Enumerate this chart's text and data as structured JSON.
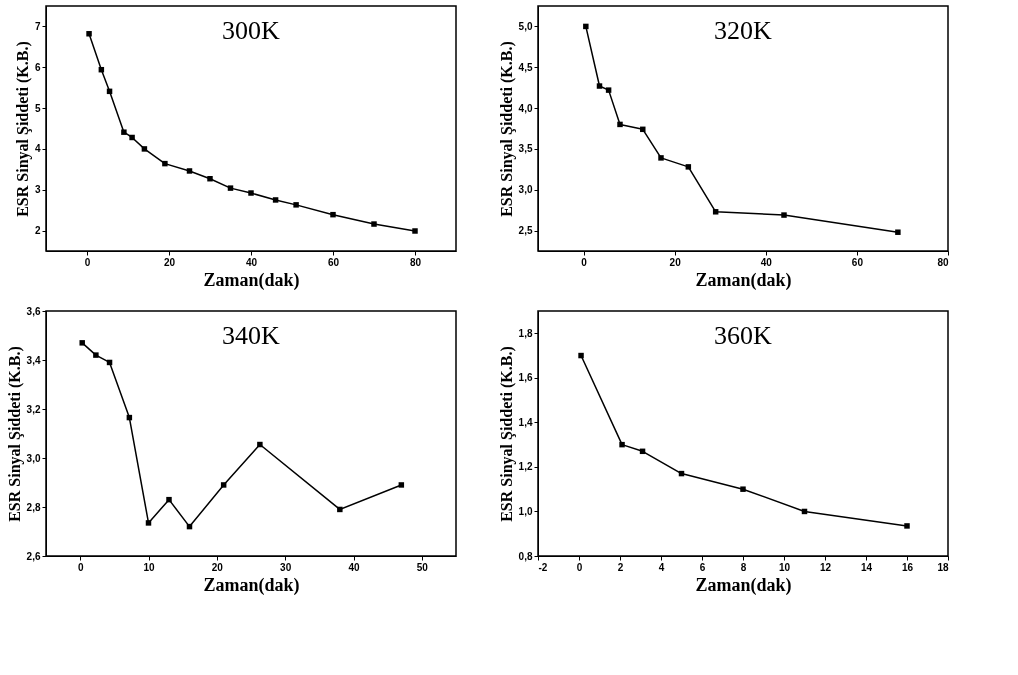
{
  "chart_data": [
    {
      "type": "line",
      "title": "300K",
      "xlabel": "Zaman(dak)",
      "ylabel": "ESR Sinyal Şiddeti (K.B.)",
      "marker": "square",
      "xlim": [
        -10,
        90
      ],
      "xticks": [
        0,
        20,
        40,
        60,
        80
      ],
      "ylim": [
        1.5,
        7.5
      ],
      "yticks": [
        2,
        3,
        4,
        5,
        6,
        7
      ],
      "x": [
        0.5,
        3.5,
        5.5,
        9,
        11,
        14,
        19,
        25,
        30,
        35,
        40,
        46,
        51,
        60,
        70,
        80
      ],
      "series": [
        {
          "color": "#000000",
          "values": [
            6.82,
            5.94,
            5.41,
            4.41,
            4.28,
            4.0,
            3.64,
            3.46,
            3.27,
            3.04,
            2.92,
            2.75,
            2.63,
            2.39,
            2.16,
            1.99
          ]
        }
      ]
    },
    {
      "type": "line",
      "title": "320K",
      "xlabel": "Zaman(dak)",
      "ylabel": "ESR Sinyal Şiddeti (K.B.)",
      "marker": "square",
      "xlim": [
        -10,
        80
      ],
      "xticks": [
        0,
        20,
        40,
        60,
        80
      ],
      "ylim": [
        2.25,
        5.25
      ],
      "yticks": [
        {
          "value": 2.5,
          "label": "2,5"
        },
        {
          "value": 3.0,
          "label": "3,0"
        },
        {
          "value": 3.5,
          "label": "3,5"
        },
        {
          "value": 4.0,
          "label": "4,0"
        },
        {
          "value": 4.5,
          "label": "4,5"
        },
        {
          "value": 5.0,
          "label": "5,0"
        }
      ],
      "x": [
        0.5,
        3.5,
        5.5,
        8,
        13,
        17,
        23,
        29,
        44,
        69
      ],
      "series": [
        {
          "color": "#000000",
          "values": [
            5.0,
            4.27,
            4.22,
            3.8,
            3.74,
            3.39,
            3.28,
            2.73,
            2.69,
            2.48
          ]
        }
      ]
    },
    {
      "type": "line",
      "title": "340K",
      "xlabel": "Zaman(dak)",
      "ylabel": "ESR Sinyal Şiddeti (K.B.)",
      "marker": "square",
      "xlim": [
        -5,
        55
      ],
      "xticks": [
        0,
        10,
        20,
        30,
        40,
        50
      ],
      "ylim": [
        2.6,
        3.6
      ],
      "yticks": [
        {
          "value": 2.6,
          "label": "2,6"
        },
        {
          "value": 2.8,
          "label": "2,8"
        },
        {
          "value": 3.0,
          "label": "3,0"
        },
        {
          "value": 3.2,
          "label": "3,2"
        },
        {
          "value": 3.4,
          "label": "3,4"
        },
        {
          "value": 3.6,
          "label": "3,6"
        }
      ],
      "x": [
        0.3,
        2.3,
        4.3,
        7.2,
        10,
        13,
        16,
        21,
        26.3,
        38,
        47
      ],
      "series": [
        {
          "color": "#000000",
          "values": [
            3.47,
            3.42,
            3.39,
            3.165,
            2.735,
            2.83,
            2.72,
            2.89,
            3.055,
            2.79,
            2.89
          ]
        }
      ]
    },
    {
      "type": "line",
      "title": "360K",
      "xlabel": "Zaman(dak)",
      "ylabel": "ESR Sinyal Şiddeti (K.B.)",
      "marker": "square",
      "xlim": [
        -2,
        18
      ],
      "xticks": [
        -2,
        0,
        2,
        4,
        6,
        8,
        10,
        12,
        14,
        16,
        18
      ],
      "ylim": [
        0.8,
        1.9
      ],
      "yticks": [
        {
          "value": 0.8,
          "label": "0,8"
        },
        {
          "value": 1.0,
          "label": "1,0"
        },
        {
          "value": 1.2,
          "label": "1,2"
        },
        {
          "value": 1.4,
          "label": "1,4"
        },
        {
          "value": 1.6,
          "label": "1,6"
        },
        {
          "value": 1.8,
          "label": "1,8"
        }
      ],
      "x": [
        0.1,
        2.1,
        3.1,
        5,
        8,
        11,
        16
      ],
      "series": [
        {
          "color": "#000000",
          "values": [
            1.7,
            1.3,
            1.27,
            1.17,
            1.1,
            1.0,
            0.935
          ]
        }
      ]
    }
  ]
}
